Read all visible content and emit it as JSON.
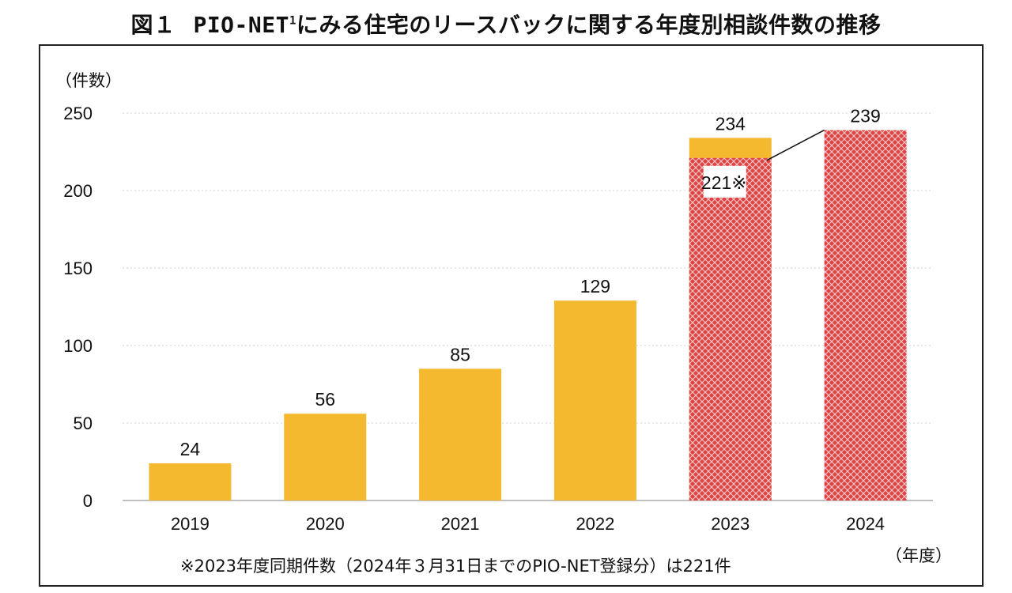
{
  "title": {
    "fig_number": "図１",
    "prefix": "PIO-NET",
    "superscript": "1",
    "rest": "にみる住宅のリースバックに関する年度別相談件数の推移"
  },
  "chart_data": {
    "type": "bar",
    "ylabel": "（件数）",
    "xlabel": "（年度）",
    "ylim": [
      0,
      250
    ],
    "yticks": [
      0,
      50,
      100,
      150,
      200,
      250
    ],
    "grid": true,
    "categories": [
      "2019",
      "2020",
      "2021",
      "2022",
      "2023",
      "2024"
    ],
    "values": [
      24,
      56,
      85,
      129,
      234,
      239
    ],
    "data_labels": [
      "24",
      "56",
      "85",
      "129",
      "234",
      "239"
    ],
    "same_period_overlay": {
      "category": "2023",
      "value": 221,
      "label": "221※",
      "connector_to": "2024"
    },
    "colors": {
      "bar": "#f4b92f",
      "hatch_bg": "#e04040",
      "hatch_fg": "#f6c9c9",
      "grid": "#d0d0d0"
    },
    "footnote": "※2023年度同期件数（2024年３月31日までのPIO-NET登録分）は221件"
  }
}
